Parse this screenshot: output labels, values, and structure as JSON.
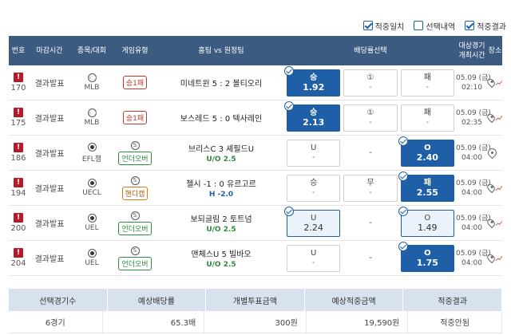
{
  "filters": [
    {
      "label": "적중일치",
      "checked": true
    },
    {
      "label": "선택내역",
      "checked": false
    },
    {
      "label": "적중결과",
      "checked": true
    }
  ],
  "header": {
    "no": "번호",
    "close": "마감시간",
    "league": "종목/대회",
    "type": "게임유형",
    "match": "홈팀 vs 원정팀",
    "odds": "배당률선택",
    "time_line1": "대상경기",
    "time_line2": "개최시간",
    "sel": "장소"
  },
  "rows": [
    {
      "no": "170",
      "close": "결과발표",
      "sport": "baseball",
      "league": "MLB",
      "type": "승1패",
      "type_color": "red",
      "type_s": false,
      "match": "미네트윈 5 : 2 볼티오리",
      "sub": "",
      "odds": [
        {
          "label": "승",
          "val": "1.92",
          "state": "sel"
        },
        {
          "label": "①",
          "val": "-",
          "state": ""
        },
        {
          "label": "패",
          "val": "-",
          "state": ""
        }
      ],
      "date": "05.09 (금)",
      "time": "02:10"
    },
    {
      "no": "175",
      "close": "결과발표",
      "sport": "baseball",
      "league": "MLB",
      "type": "승1패",
      "type_color": "red",
      "type_s": false,
      "match": "보스레드 5 : 0 텍사레인",
      "sub": "",
      "odds": [
        {
          "label": "승",
          "val": "2.13",
          "state": "sel"
        },
        {
          "label": "①",
          "val": "-",
          "state": ""
        },
        {
          "label": "패",
          "val": "-",
          "state": ""
        }
      ],
      "date": "05.09 (금)",
      "time": "02:35"
    },
    {
      "no": "186",
      "close": "결과발표",
      "sport": "ball",
      "league": "EFL챔",
      "type": "언더오버",
      "type_color": "green",
      "type_s": true,
      "match": "브리스C   3   셰필드U",
      "sub": "U/O 2.5",
      "odds": [
        {
          "label": "U",
          "val": "-",
          "state": ""
        },
        {
          "label": "-",
          "val": "",
          "state": "empty"
        },
        {
          "label": "O",
          "val": "2.40",
          "state": "sel"
        }
      ],
      "date": "05.09 (금)",
      "time": "04:00"
    },
    {
      "no": "194",
      "close": "결과발표",
      "sport": "ball",
      "league": "UECL",
      "type": "핸디캡",
      "type_color": "orange",
      "type_s": true,
      "match": "첼시 -1 : 0 유르고르",
      "sub": "H -2.0",
      "odds": [
        {
          "label": "승",
          "val": "-",
          "state": ""
        },
        {
          "label": "무",
          "val": "-",
          "state": ""
        },
        {
          "label": "패",
          "val": "2.55",
          "state": "sel"
        }
      ],
      "date": "05.09 (금)",
      "time": "04:00"
    },
    {
      "no": "200",
      "close": "결과발표",
      "sport": "ball",
      "league": "UEL",
      "type": "언더오버",
      "type_color": "green",
      "type_s": true,
      "match": "보되글림   2   토트넘",
      "sub": "U/O 2.5",
      "odds": [
        {
          "label": "U",
          "val": "2.24",
          "state": "hl"
        },
        {
          "label": "-",
          "val": "",
          "state": "empty"
        },
        {
          "label": "O",
          "val": "1.49",
          "state": "hl"
        }
      ],
      "date": "05.09 (금)",
      "time": "04:00"
    },
    {
      "no": "204",
      "close": "결과발표",
      "sport": "ball",
      "league": "UEL",
      "type": "언더오버",
      "type_color": "green",
      "type_s": true,
      "match": "맨체스U   5   빌바오",
      "sub": "U/O 2.5",
      "odds": [
        {
          "label": "U",
          "val": "-",
          "state": ""
        },
        {
          "label": "-",
          "val": "",
          "state": "empty"
        },
        {
          "label": "O",
          "val": "1.75",
          "state": "sel"
        }
      ],
      "date": "05.09 (금)",
      "time": "04:00"
    }
  ],
  "summary": {
    "headers": [
      "선택경기수",
      "예상배당률",
      "개별투표금액",
      "예상적중금액",
      "적중결과"
    ],
    "values": [
      "6경기",
      "65.3배",
      "300원",
      "19,590원",
      "적중안됨"
    ]
  }
}
